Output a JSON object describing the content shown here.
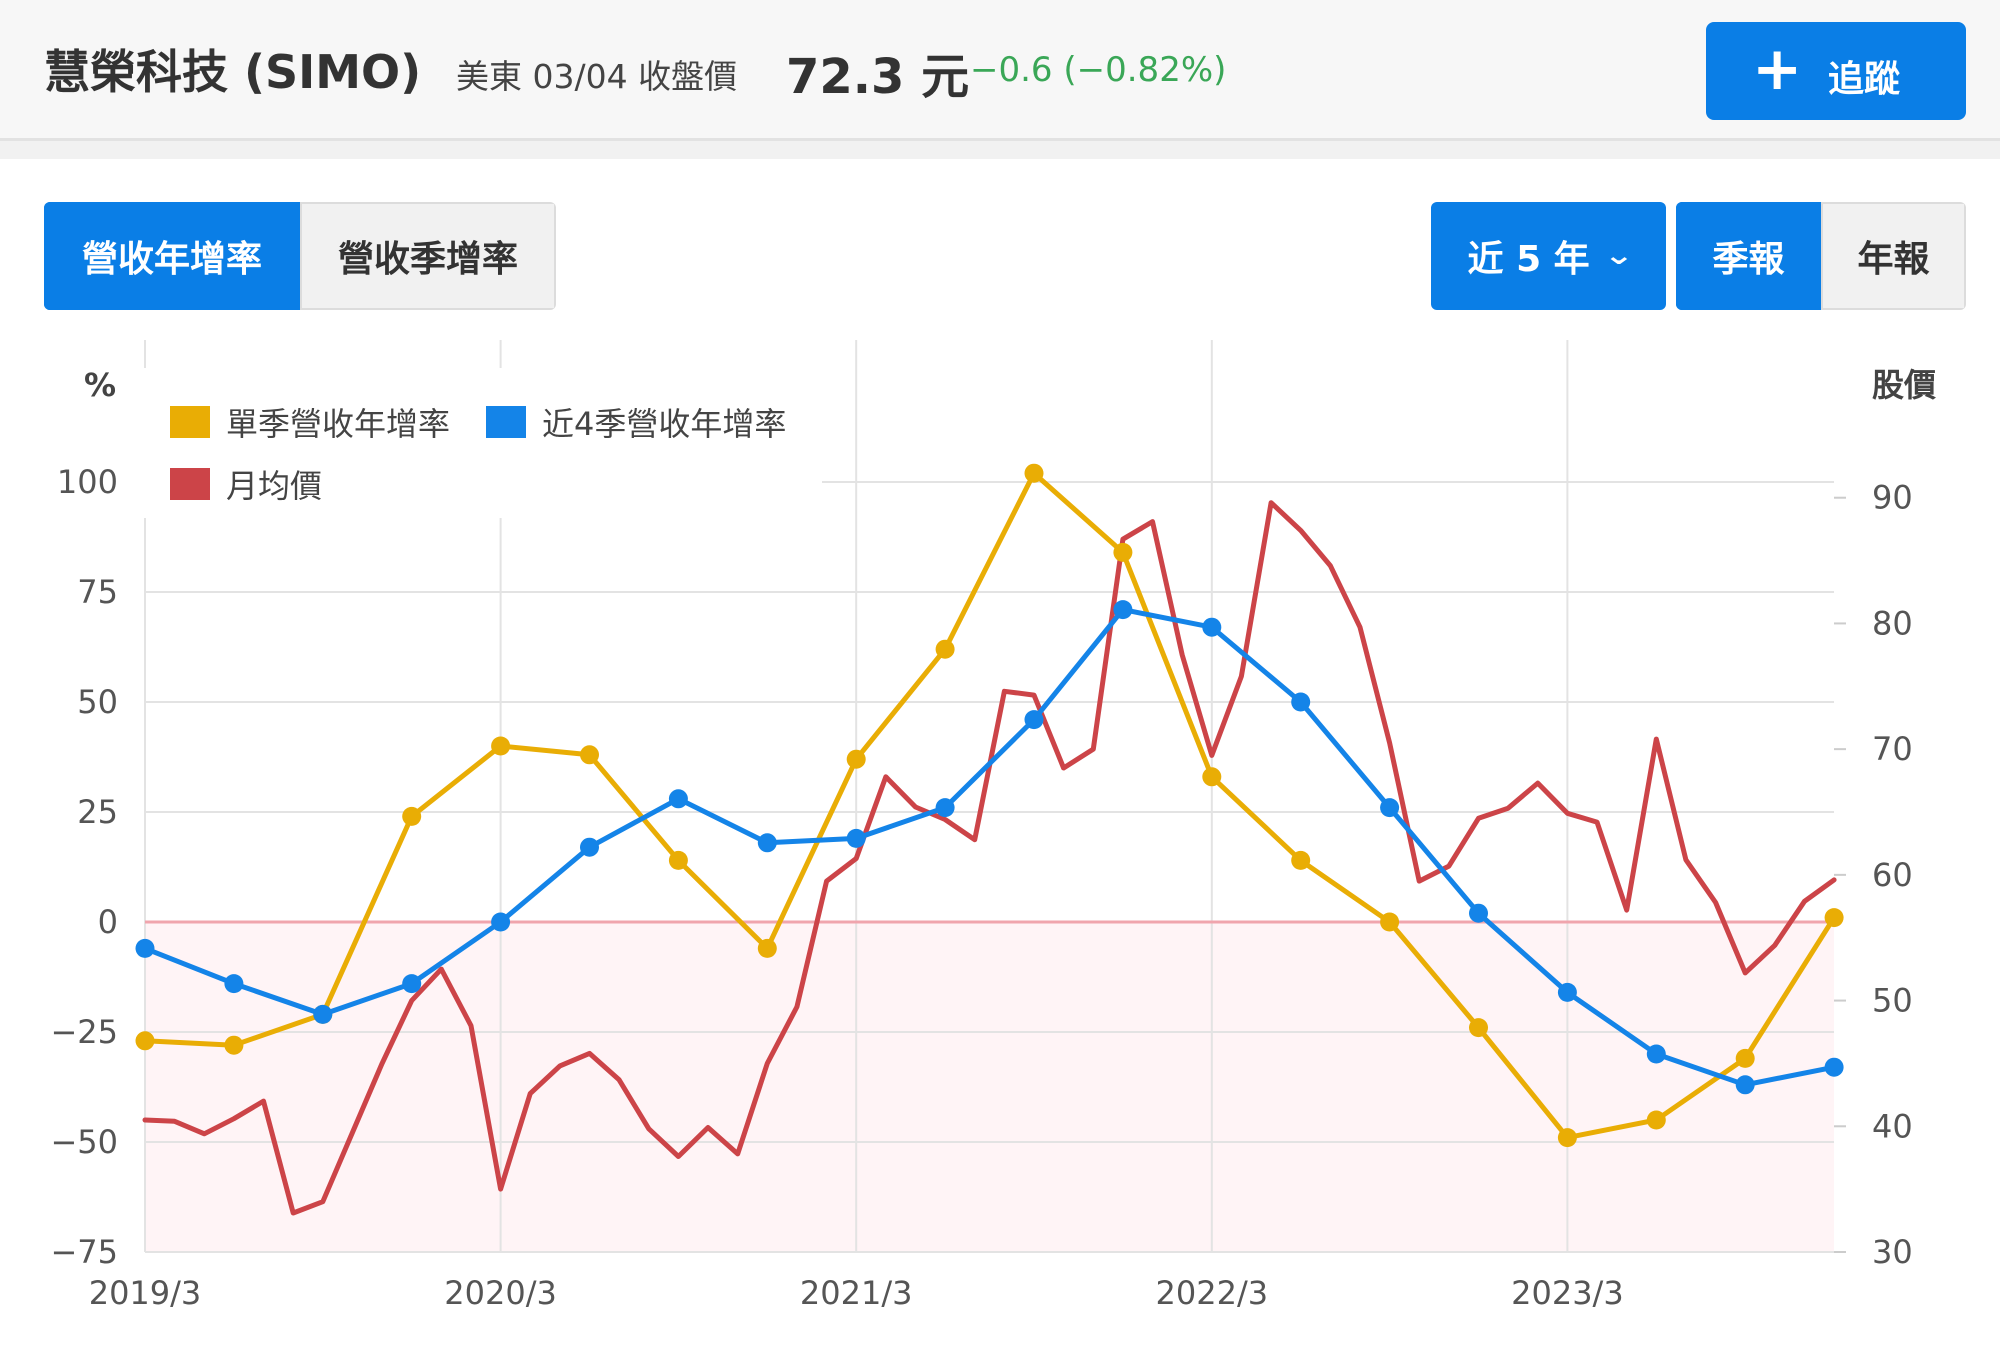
{
  "header": {
    "stock_name": "慧榮科技 (SIMO)",
    "market_label": "美東 03/04 收盤價",
    "price": "72.3 元",
    "change": "−0.6 (−0.82%)",
    "track_label": "追蹤",
    "track_icon": "plus-icon"
  },
  "tabs": [
    {
      "label": "營收年增率",
      "active": true
    },
    {
      "label": "營收季增率",
      "active": false
    }
  ],
  "range_selector": {
    "label": "近 5 年",
    "icon": "chevron-down-icon"
  },
  "period_toggle": [
    {
      "label": "季報",
      "active": true
    },
    {
      "label": "年報",
      "active": false
    }
  ],
  "colors": {
    "accent": "#0a7ee6",
    "quarterly_yoy": "#e9ad05",
    "four_q_yoy": "#1484e8",
    "monthly_price": "#cc4448",
    "change_green": "#3aa757",
    "zero_line": "#f0a5ad",
    "negative_fill": "#fff4f6"
  },
  "chart_data": {
    "type": "line",
    "x_tick_labels": [
      "2019/3",
      "2020/3",
      "2021/3",
      "2022/3",
      "2023/3"
    ],
    "left_axis": {
      "label": "%",
      "ylim": [
        -75,
        125
      ],
      "ticks": [
        -75,
        -50,
        -25,
        0,
        25,
        50,
        75,
        100
      ]
    },
    "right_axis": {
      "label": "股價",
      "ylim": [
        30,
        100
      ],
      "ticks": [
        30,
        40,
        50,
        60,
        70,
        80,
        90
      ]
    },
    "legend": {
      "placement": "top-left"
    },
    "negative_region_shaded": true,
    "quarters": [
      "2019/3",
      "2019/6",
      "2019/9",
      "2019/12",
      "2020/3",
      "2020/6",
      "2020/9",
      "2020/12",
      "2021/3",
      "2021/6",
      "2021/9",
      "2021/12",
      "2022/3",
      "2022/6",
      "2022/9",
      "2022/12",
      "2023/3",
      "2023/6",
      "2023/9",
      "2023/12"
    ],
    "series": [
      {
        "name": "單季營收年增率",
        "axis": "left",
        "markers": true,
        "values": [
          -27,
          -28,
          -21,
          24,
          40,
          38,
          14,
          -6,
          37,
          62,
          102,
          84,
          33,
          14,
          0,
          -24,
          -49,
          -45,
          -31,
          1
        ]
      },
      {
        "name": "近4季營收年增率",
        "axis": "left",
        "markers": true,
        "values": [
          -6,
          -14,
          -21,
          -14,
          0,
          17,
          28,
          18,
          19,
          26,
          46,
          71,
          67,
          50,
          26,
          2,
          -16,
          -30,
          -37,
          -33
        ]
      },
      {
        "name": "月均價",
        "axis": "right",
        "markers": false,
        "x": [
          "2019/3",
          "2019/4",
          "2019/5",
          "2019/6",
          "2019/7",
          "2019/8",
          "2019/9",
          "2019/10",
          "2019/11",
          "2019/12",
          "2020/1",
          "2020/2",
          "2020/3",
          "2020/4",
          "2020/5",
          "2020/6",
          "2020/7",
          "2020/8",
          "2020/9",
          "2020/10",
          "2020/11",
          "2020/12",
          "2021/1",
          "2021/2",
          "2021/3",
          "2021/4",
          "2021/5",
          "2021/6",
          "2021/7",
          "2021/8",
          "2021/9",
          "2021/10",
          "2021/11",
          "2021/12",
          "2022/1",
          "2022/2",
          "2022/3",
          "2022/4",
          "2022/5",
          "2022/6",
          "2022/7",
          "2022/8",
          "2022/9",
          "2022/10",
          "2022/11",
          "2022/12",
          "2023/1",
          "2023/2",
          "2023/3",
          "2023/4",
          "2023/5",
          "2023/6",
          "2023/7",
          "2023/8",
          "2023/9",
          "2023/10",
          "2023/11",
          "2023/12"
        ],
        "values": [
          40.5,
          40.4,
          39.4,
          40.6,
          42,
          33.1,
          34,
          39.5,
          45,
          50,
          52.5,
          48,
          35,
          42.6,
          44.8,
          45.8,
          43.7,
          39.8,
          37.6,
          39.9,
          37.8,
          45,
          49.5,
          59.5,
          61.3,
          67.8,
          65.4,
          64.4,
          62.8,
          74.6,
          74.3,
          68.5,
          70,
          86.7,
          88.1,
          77.5,
          69.5,
          75.8,
          89.6,
          87.4,
          84.6,
          79.7,
          70.5,
          59.5,
          60.7,
          64.5,
          65.3,
          67.3,
          64.9,
          64.2,
          57.2,
          70.8,
          61.2,
          57.8,
          52.2,
          54.4,
          57.9,
          59.6
        ]
      }
    ]
  }
}
